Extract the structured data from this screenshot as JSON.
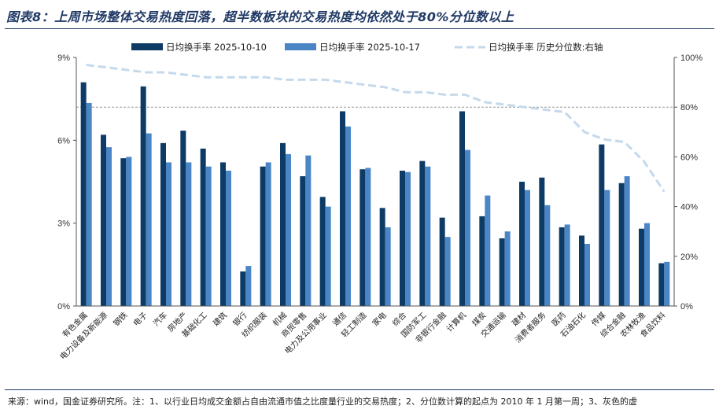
{
  "page": {
    "title": "图表8：上周市场整体交易热度回落，超半数板块的交易热度均依然处于80%分位数以上",
    "footer": "来源：wind，国金证券研究所。注：1、以行业日均成交金额占自由流通市值之比度量行业的交易热度；2、分位数计算的起点为 2010 年 1 月第一周；3、灰色的虚"
  },
  "chart_data": {
    "type": "bar",
    "title": "",
    "categories": [
      "有色金属",
      "电力设备及新能源",
      "钢铁",
      "电子",
      "汽车",
      "房地产",
      "基础化工",
      "建筑",
      "银行",
      "纺织服装",
      "机械",
      "商贸零售",
      "电力及公用事业",
      "通信",
      "轻工制造",
      "家电",
      "综合",
      "国防军工",
      "非银行金融",
      "计算机",
      "煤炭",
      "交通运输",
      "建材",
      "消费者服务",
      "医药",
      "石油石化",
      "传媒",
      "综合金融",
      "农林牧渔",
      "食品饮料"
    ],
    "series": [
      {
        "name": "日均换手率 2025-10-10",
        "color": "#0d3b66",
        "values": [
          8.1,
          6.2,
          5.35,
          7.95,
          5.9,
          6.35,
          5.7,
          5.2,
          1.25,
          5.05,
          5.9,
          4.7,
          3.95,
          7.05,
          4.95,
          3.55,
          4.9,
          5.25,
          3.2,
          7.05,
          3.25,
          2.45,
          4.5,
          4.65,
          2.85,
          2.55,
          5.85,
          4.45,
          2.8,
          1.55
        ]
      },
      {
        "name": "日均换手率 2025-10-17",
        "color": "#4a86c5",
        "values": [
          7.35,
          5.75,
          5.4,
          6.25,
          5.2,
          5.2,
          5.05,
          4.9,
          1.45,
          5.2,
          5.5,
          5.45,
          3.6,
          6.5,
          5.0,
          2.85,
          4.85,
          5.05,
          2.5,
          5.65,
          4.0,
          2.7,
          4.2,
          3.65,
          2.95,
          2.25,
          4.2,
          4.7,
          3.0,
          1.6
        ]
      },
      {
        "name": "日均换手率 历史分位数:右轴",
        "color": "#c5d9ec",
        "axis": "right",
        "values": [
          97,
          96,
          95,
          94,
          94,
          93,
          92,
          92,
          92,
          92,
          91,
          91,
          91,
          90,
          89,
          88,
          86,
          86,
          85,
          85,
          82,
          81,
          80,
          79,
          78,
          70,
          67,
          66,
          58,
          46
        ]
      }
    ],
    "ylim": [
      0,
      9
    ],
    "yticks": [
      "0%",
      "3%",
      "6%",
      "9%"
    ],
    "y2lim": [
      0,
      100
    ],
    "y2ticks": [
      "0%",
      "20%",
      "40%",
      "60%",
      "80%",
      "100%"
    ],
    "reference_line": {
      "axis": "right",
      "value": 80,
      "style": "dashed"
    },
    "legend": "top"
  }
}
